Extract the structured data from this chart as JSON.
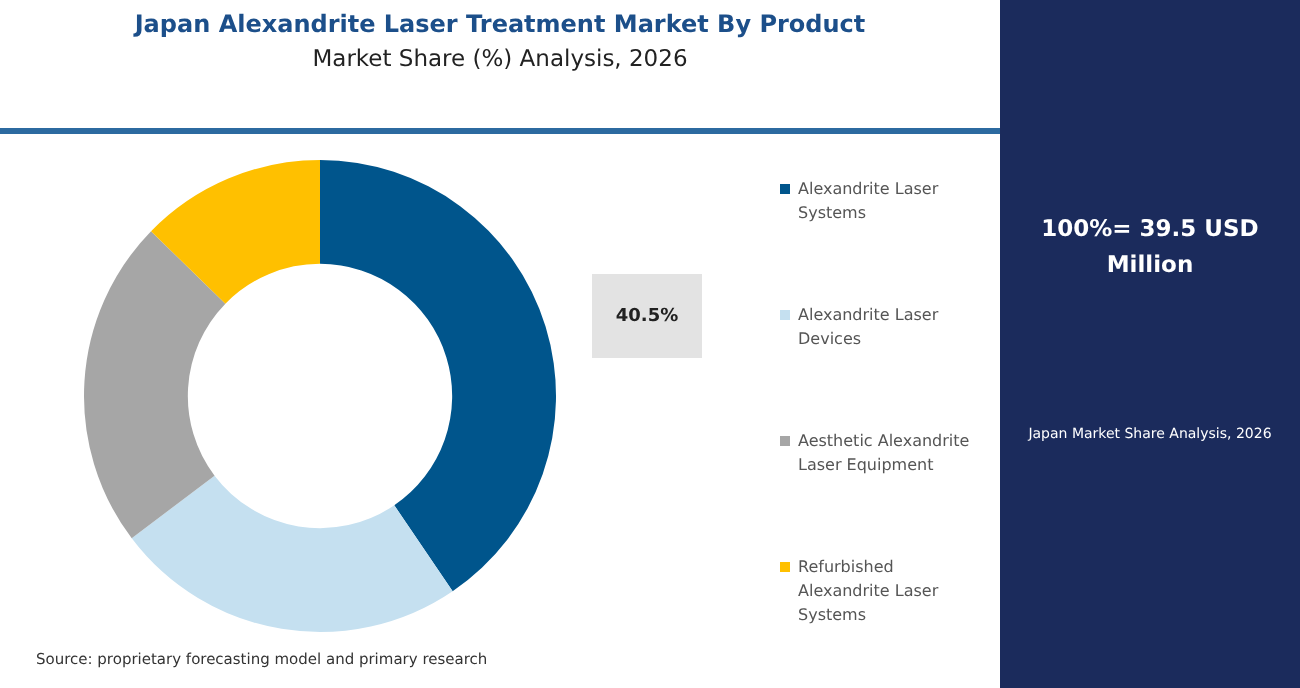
{
  "chart_data": {
    "type": "donut",
    "title": "Japan Alexandrite Laser Treatment Market By Product",
    "subtitle": "Market Share (%) Analysis, 2026",
    "categories": [
      "Alexandrite Laser Systems",
      "Alexandrite Laser Devices",
      "Aesthetic Alexandrite Laser Equipment",
      "Refurbished Alexandrite Laser Systems"
    ],
    "values": [
      40.5,
      24.2,
      22.6,
      12.7
    ],
    "colors": [
      "#00558c",
      "#c5e0f0",
      "#a6a6a6",
      "#ffc000"
    ],
    "value_labels": [
      "40.5%",
      null,
      null,
      null
    ],
    "legend": "right",
    "annotations": [
      "100%= 39.5 USD Million",
      "Japan Market Share Analysis, 2026",
      "Source: proprietary forecasting model and primary research"
    ]
  }
}
